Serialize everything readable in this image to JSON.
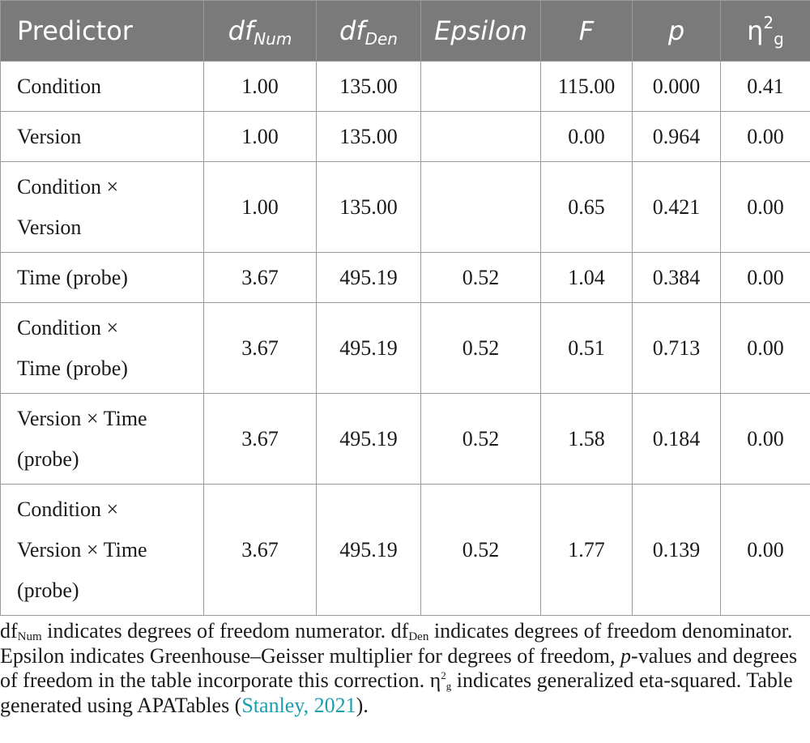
{
  "table": {
    "headers": {
      "predictor": "Predictor",
      "df_num": {
        "main": "df",
        "sub": "Num"
      },
      "df_den": {
        "main": "df",
        "sub": "Den"
      },
      "epsilon": "Epsilon",
      "f": "F",
      "p": "p",
      "eta": {
        "main": "η",
        "sup": "2",
        "sub": "g"
      }
    },
    "rows": [
      {
        "predictor_lines": [
          "Condition"
        ],
        "df_num": "1.00",
        "df_den": "135.00",
        "epsilon": "",
        "f": "115.00",
        "p": "0.000",
        "eta": "0.41"
      },
      {
        "predictor_lines": [
          "Version"
        ],
        "df_num": "1.00",
        "df_den": "135.00",
        "epsilon": "",
        "f": "0.00",
        "p": "0.964",
        "eta": "0.00"
      },
      {
        "predictor_lines": [
          "Condition ×",
          "Version"
        ],
        "df_num": "1.00",
        "df_den": "135.00",
        "epsilon": "",
        "f": "0.65",
        "p": "0.421",
        "eta": "0.00"
      },
      {
        "predictor_lines": [
          "Time (probe)"
        ],
        "df_num": "3.67",
        "df_den": "495.19",
        "epsilon": "0.52",
        "f": "1.04",
        "p": "0.384",
        "eta": "0.00"
      },
      {
        "predictor_lines": [
          "Condition ×",
          "Time (probe)"
        ],
        "df_num": "3.67",
        "df_den": "495.19",
        "epsilon": "0.52",
        "f": "0.51",
        "p": "0.713",
        "eta": "0.00"
      },
      {
        "predictor_lines": [
          "Version × Time",
          "(probe)"
        ],
        "df_num": "3.67",
        "df_den": "495.19",
        "epsilon": "0.52",
        "f": "1.58",
        "p": "0.184",
        "eta": "0.00"
      },
      {
        "predictor_lines": [
          "Condition ×",
          "Version × Time",
          "(probe)"
        ],
        "df_num": "3.67",
        "df_den": "495.19",
        "epsilon": "0.52",
        "f": "1.77",
        "p": "0.139",
        "eta": "0.00"
      }
    ]
  },
  "note": {
    "df_main": "df",
    "num_sub": "Num",
    "text1": " indicates degrees of freedom numerator. ",
    "den_sub": "Den",
    "text2": " indicates degrees of freedom denominator. Epsilon indicates Greenhouse–Geisser multiplier for degrees of freedom, ",
    "p_italic": "p",
    "text3": "-values and degrees of freedom in the table incorporate this correction. ",
    "eta_main": "η",
    "eta_sup": "2",
    "eta_sub": "g",
    "text4": " indicates generalized eta-squared. Table generated using APATables (",
    "citation": "Stanley, 2021",
    "text5": ")."
  }
}
